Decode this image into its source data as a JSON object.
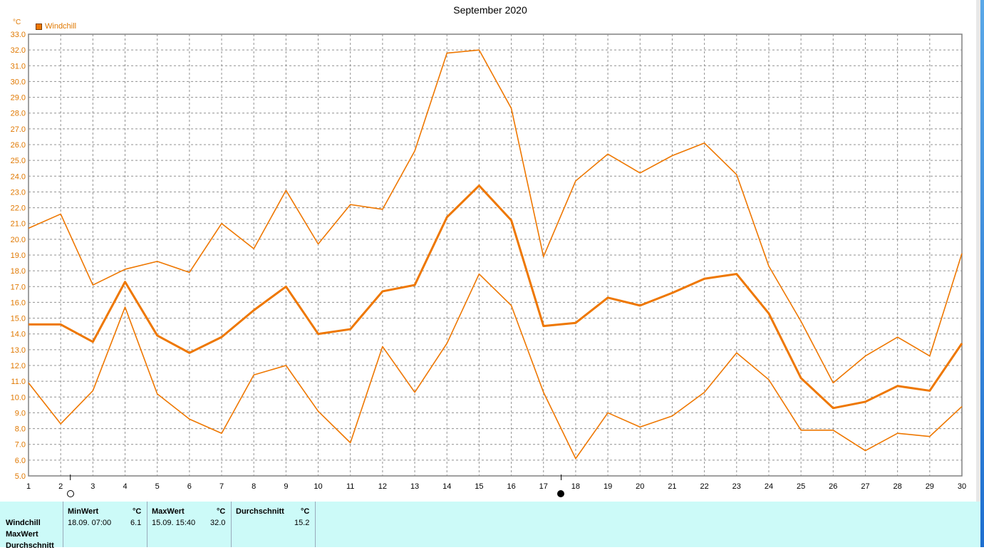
{
  "chart_data": {
    "type": "line",
    "title": "September 2020",
    "ylabel": "°C",
    "ylim": [
      5.0,
      33.0
    ],
    "y_ticks": [
      "5.0",
      "6.0",
      "7.0",
      "8.0",
      "9.0",
      "10.0",
      "11.0",
      "12.0",
      "13.0",
      "14.0",
      "15.0",
      "16.0",
      "17.0",
      "18.0",
      "19.0",
      "20.0",
      "21.0",
      "22.0",
      "23.0",
      "24.0",
      "25.0",
      "26.0",
      "27.0",
      "28.0",
      "29.0",
      "30.0",
      "31.0",
      "32.0",
      "33.0"
    ],
    "x": [
      1,
      2,
      3,
      4,
      5,
      6,
      7,
      8,
      9,
      10,
      11,
      12,
      13,
      14,
      15,
      16,
      17,
      18,
      19,
      20,
      21,
      22,
      23,
      24,
      25,
      26,
      27,
      28,
      29,
      30
    ],
    "legend": [
      "Windchill"
    ],
    "grid": true,
    "line_color": "#ee7700",
    "series": [
      {
        "role": "max",
        "values": [
          20.7,
          21.6,
          17.1,
          18.1,
          18.6,
          17.9,
          21.0,
          19.4,
          23.1,
          19.7,
          22.2,
          21.9,
          25.6,
          31.8,
          32.0,
          28.3,
          18.9,
          23.7,
          25.4,
          24.2,
          25.3,
          26.1,
          24.1,
          18.3,
          14.8,
          10.9,
          12.6,
          13.8,
          12.6,
          19.1
        ]
      },
      {
        "role": "avg",
        "values": [
          14.6,
          14.6,
          13.5,
          17.3,
          13.9,
          12.8,
          13.8,
          15.5,
          17.0,
          14.0,
          14.3,
          16.7,
          17.1,
          21.4,
          23.4,
          21.2,
          14.5,
          14.7,
          16.3,
          15.8,
          16.6,
          17.5,
          17.8,
          15.3,
          11.2,
          9.3,
          9.7,
          10.7,
          10.4,
          13.4
        ]
      },
      {
        "role": "min",
        "values": [
          10.9,
          8.3,
          10.4,
          15.7,
          10.2,
          8.6,
          7.7,
          11.4,
          12.0,
          9.1,
          7.1,
          13.2,
          10.3,
          13.4,
          17.8,
          15.8,
          10.3,
          6.1,
          9.0,
          8.1,
          8.8,
          10.3,
          12.8,
          11.1,
          7.9,
          7.9,
          6.6,
          7.7,
          7.5,
          9.4
        ]
      }
    ],
    "markers": [
      {
        "type": "open-circle",
        "x": 2.3
      },
      {
        "type": "filled-circle",
        "x": 17.55
      }
    ]
  },
  "stats": {
    "row_labels": [
      "Windchill",
      "MaxWert",
      "Durchschnitt"
    ],
    "min": {
      "header": "MinWert",
      "unit": "°C",
      "date": "18.09.  07:00",
      "value": "6.1"
    },
    "max": {
      "header": "MaxWert",
      "unit": "°C",
      "date": "15.09.  15:40",
      "value": "32.0"
    },
    "avg": {
      "header": "Durchschnitt",
      "unit": "°C",
      "value": "15.2"
    }
  }
}
